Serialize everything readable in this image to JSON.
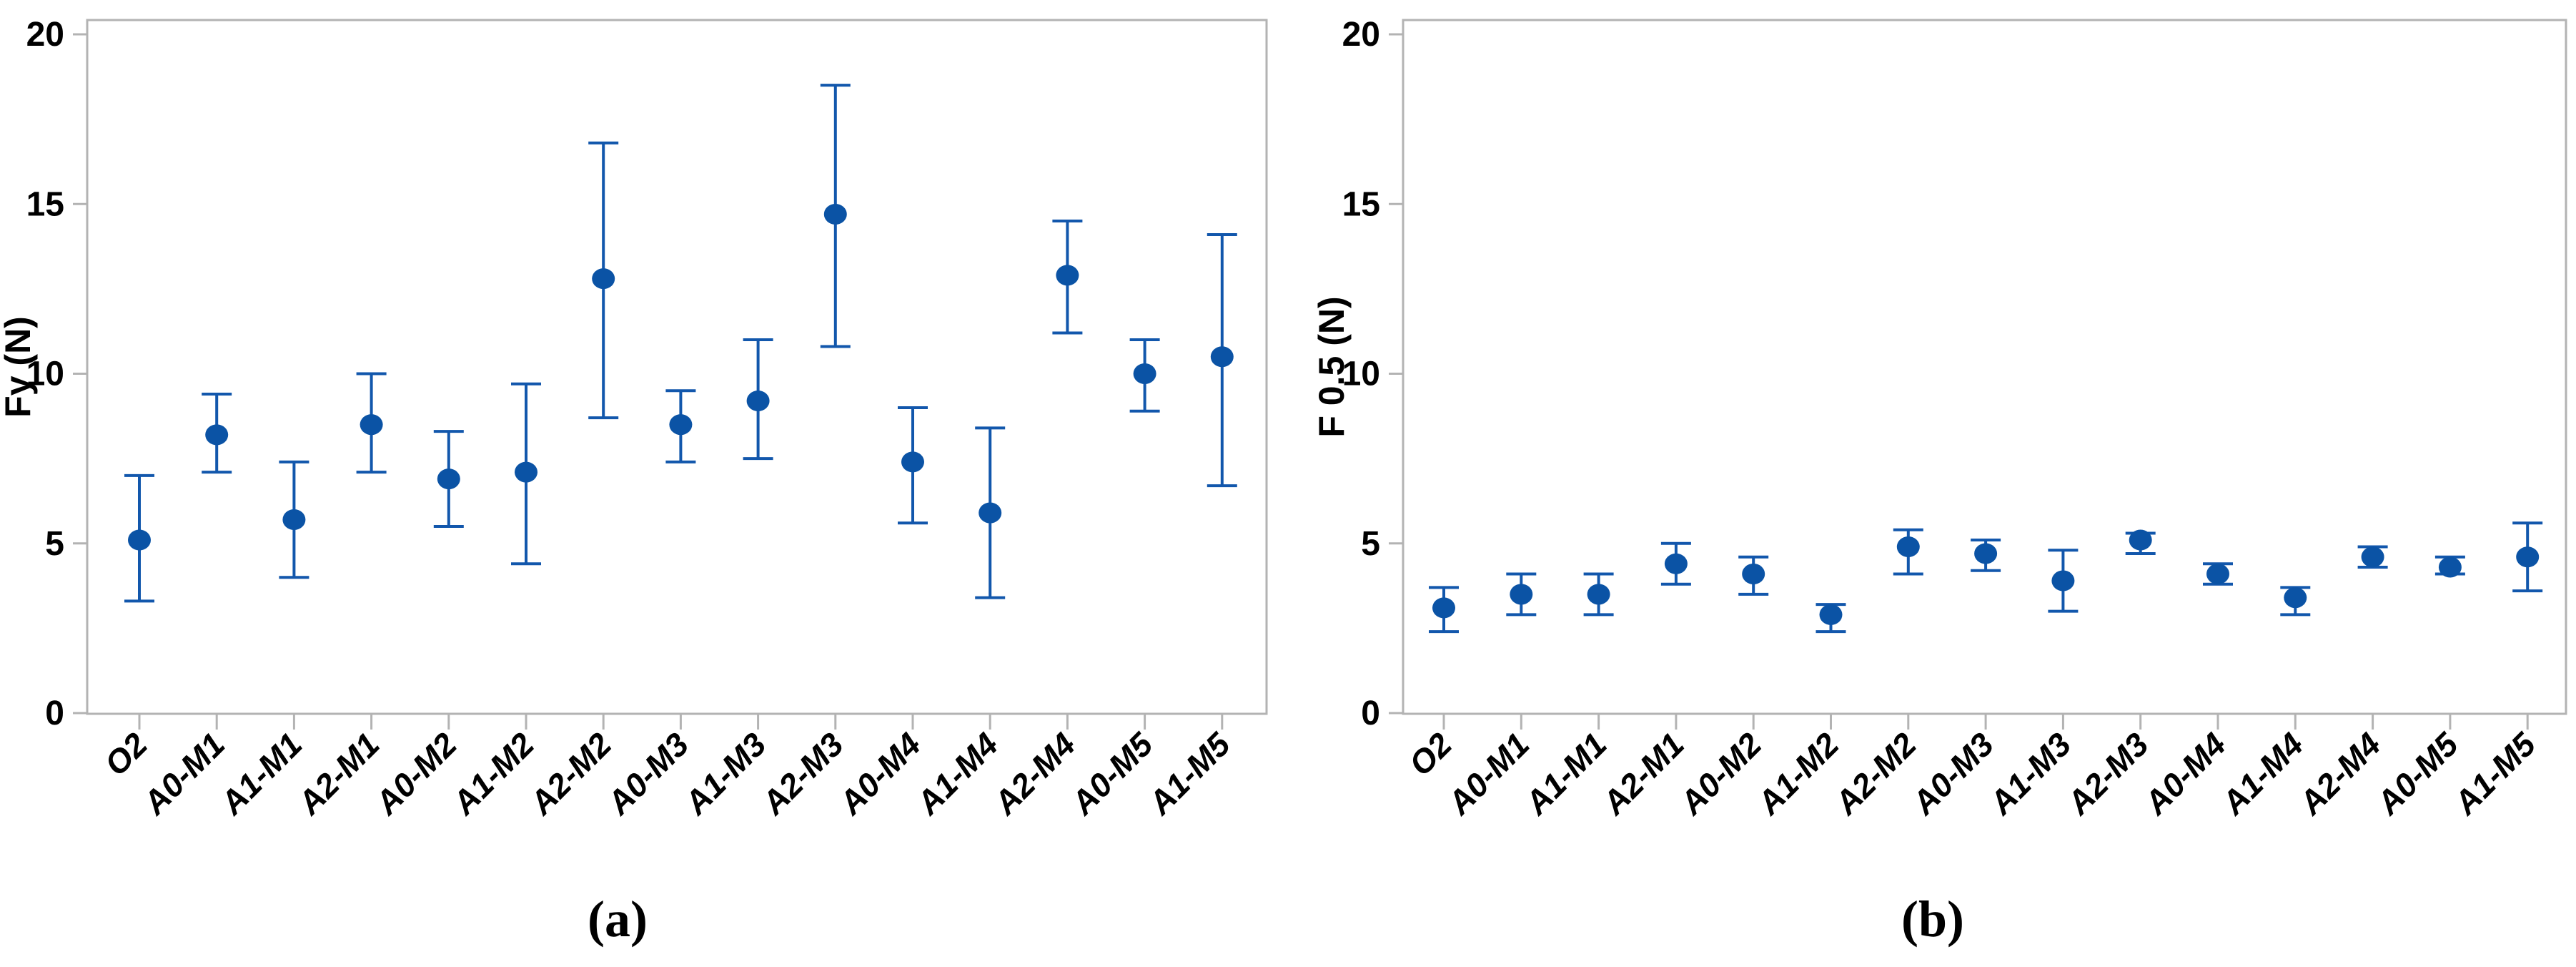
{
  "figure": {
    "captions": {
      "a": "(a)",
      "b": "(b)"
    },
    "background_color": "#ffffff",
    "frame_color": "#b3b3b3",
    "text_color": "#000000",
    "marker_color": "#0b53a5",
    "errorbar_color": "#1257ac"
  },
  "chart_data": [
    {
      "id": "a",
      "type": "scatter",
      "title": "",
      "xlabel": "",
      "ylabel": "Fy (N)",
      "ylim": [
        0,
        20
      ],
      "yticks": [
        0,
        5,
        10,
        15,
        20
      ],
      "grid": false,
      "legend": "none",
      "marker": "circle",
      "categories": [
        "O2",
        "A0-M1",
        "A1-M1",
        "A2-M1",
        "A0-M2",
        "A1-M2",
        "A2-M2",
        "A0-M3",
        "A1-M3",
        "A2-M3",
        "A0-M4",
        "A1-M4",
        "A2-M4",
        "A0-M5",
        "A1-M5"
      ],
      "series": [
        {
          "name": "Fy",
          "values": [
            5.1,
            8.2,
            5.7,
            8.5,
            6.9,
            7.1,
            12.8,
            8.5,
            9.2,
            14.7,
            7.4,
            5.9,
            12.9,
            10.0,
            10.5
          ],
          "lower_bounds": [
            3.3,
            7.1,
            4.0,
            7.1,
            5.5,
            4.4,
            8.7,
            7.4,
            7.5,
            10.8,
            5.6,
            3.4,
            11.2,
            8.9,
            6.7
          ],
          "upper_bounds": [
            7.0,
            9.4,
            7.4,
            10.0,
            8.3,
            9.7,
            16.8,
            9.5,
            11.0,
            18.5,
            9.0,
            8.4,
            14.5,
            11.0,
            14.1
          ]
        }
      ]
    },
    {
      "id": "b",
      "type": "scatter",
      "title": "",
      "xlabel": "",
      "ylabel": "F 0.5 (N)",
      "ylim": [
        0,
        20
      ],
      "yticks": [
        0,
        5,
        10,
        15,
        20
      ],
      "grid": false,
      "legend": "none",
      "marker": "circle",
      "categories": [
        "O2",
        "A0-M1",
        "A1-M1",
        "A2-M1",
        "A0-M2",
        "A1-M2",
        "A2-M2",
        "A0-M3",
        "A1-M3",
        "A2-M3",
        "A0-M4",
        "A1-M4",
        "A2-M4",
        "A0-M5",
        "A1-M5"
      ],
      "series": [
        {
          "name": "F 0.5",
          "values": [
            3.1,
            3.5,
            3.5,
            4.4,
            4.1,
            2.9,
            4.9,
            4.7,
            3.9,
            5.1,
            4.1,
            3.4,
            4.6,
            4.3,
            4.6
          ],
          "lower_bounds": [
            2.4,
            2.9,
            2.9,
            3.8,
            3.5,
            2.4,
            4.1,
            4.2,
            3.0,
            4.7,
            3.8,
            2.9,
            4.3,
            4.1,
            3.6
          ],
          "upper_bounds": [
            3.7,
            4.1,
            4.1,
            5.0,
            4.6,
            3.2,
            5.4,
            5.1,
            4.8,
            5.3,
            4.4,
            3.7,
            4.9,
            4.6,
            5.6
          ]
        }
      ]
    }
  ]
}
